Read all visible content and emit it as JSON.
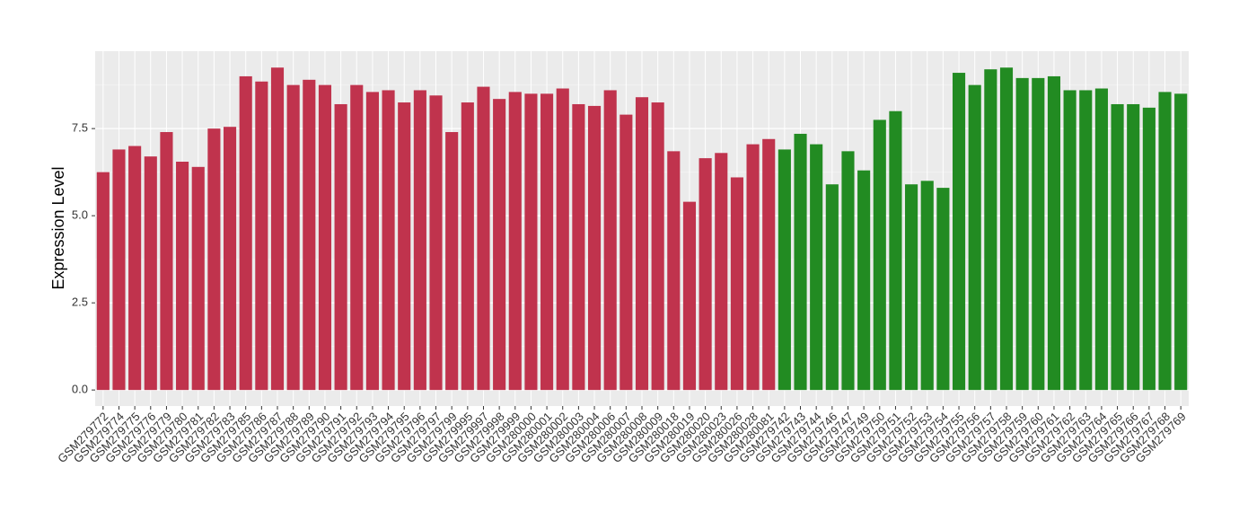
{
  "chart_data": {
    "type": "bar",
    "y_label": "Expression Level",
    "categories": [
      "GSM279772",
      "GSM279774",
      "GSM279775",
      "GSM279776",
      "GSM279779",
      "GSM279780",
      "GSM279781",
      "GSM279782",
      "GSM279783",
      "GSM279785",
      "GSM279786",
      "GSM279787",
      "GSM279788",
      "GSM279789",
      "GSM279790",
      "GSM279791",
      "GSM279792",
      "GSM279793",
      "GSM279794",
      "GSM279795",
      "GSM279796",
      "GSM279797",
      "GSM279799",
      "GSM279995",
      "GSM279997",
      "GSM279998",
      "GSM279999",
      "GSM280000",
      "GSM280001",
      "GSM280002",
      "GSM280003",
      "GSM280004",
      "GSM280006",
      "GSM280007",
      "GSM280008",
      "GSM280009",
      "GSM280018",
      "GSM280019",
      "GSM280020",
      "GSM280023",
      "GSM280026",
      "GSM280028",
      "GSM280081",
      "GSM279742",
      "GSM279743",
      "GSM279744",
      "GSM279746",
      "GSM279747",
      "GSM279749",
      "GSM279750",
      "GSM279751",
      "GSM279752",
      "GSM279753",
      "GSM279754",
      "GSM279755",
      "GSM279756",
      "GSM279757",
      "GSM279758",
      "GSM279759",
      "GSM279760",
      "GSM279761",
      "GSM279762",
      "GSM279763",
      "GSM279764",
      "GSM279765",
      "GSM279766",
      "GSM279767",
      "GSM279768",
      "GSM279769"
    ],
    "values": [
      6.25,
      6.9,
      7.0,
      6.7,
      7.4,
      6.55,
      6.4,
      7.5,
      7.55,
      9.0,
      8.85,
      9.25,
      8.75,
      8.9,
      8.75,
      8.2,
      8.75,
      8.55,
      8.6,
      8.25,
      8.6,
      8.45,
      7.4,
      8.25,
      8.7,
      8.35,
      8.55,
      8.5,
      8.5,
      8.65,
      8.2,
      8.15,
      8.6,
      7.9,
      8.4,
      8.25,
      6.85,
      5.4,
      6.65,
      6.8,
      6.1,
      7.05,
      7.2,
      6.9,
      7.35,
      7.05,
      5.9,
      6.85,
      6.3,
      7.75,
      8.0,
      5.9,
      6.0,
      5.8,
      9.1,
      8.75,
      9.2,
      9.25,
      8.95,
      8.95,
      9.0,
      8.6,
      8.6,
      8.65,
      8.2,
      8.2,
      8.1,
      8.55,
      8.5
    ],
    "colors": [
      "#c0334d",
      "#c0334d",
      "#c0334d",
      "#c0334d",
      "#c0334d",
      "#c0334d",
      "#c0334d",
      "#c0334d",
      "#c0334d",
      "#c0334d",
      "#c0334d",
      "#c0334d",
      "#c0334d",
      "#c0334d",
      "#c0334d",
      "#c0334d",
      "#c0334d",
      "#c0334d",
      "#c0334d",
      "#c0334d",
      "#c0334d",
      "#c0334d",
      "#c0334d",
      "#c0334d",
      "#c0334d",
      "#c0334d",
      "#c0334d",
      "#c0334d",
      "#c0334d",
      "#c0334d",
      "#c0334d",
      "#c0334d",
      "#c0334d",
      "#c0334d",
      "#c0334d",
      "#c0334d",
      "#c0334d",
      "#c0334d",
      "#c0334d",
      "#c0334d",
      "#c0334d",
      "#c0334d",
      "#c0334d",
      "#228b22",
      "#228b22",
      "#228b22",
      "#228b22",
      "#228b22",
      "#228b22",
      "#228b22",
      "#228b22",
      "#228b22",
      "#228b22",
      "#228b22",
      "#228b22",
      "#228b22",
      "#228b22",
      "#228b22",
      "#228b22",
      "#228b22",
      "#228b22",
      "#228b22",
      "#228b22",
      "#228b22",
      "#228b22",
      "#228b22",
      "#228b22",
      "#228b22",
      "#228b22"
    ],
    "ylim": [
      -0.46,
      9.72
    ],
    "yticks": [
      {
        "value": 0,
        "label": "0.0"
      },
      2.5,
      {
        "value": 5,
        "label": "5.0"
      },
      7.5
    ],
    "grid": true
  }
}
